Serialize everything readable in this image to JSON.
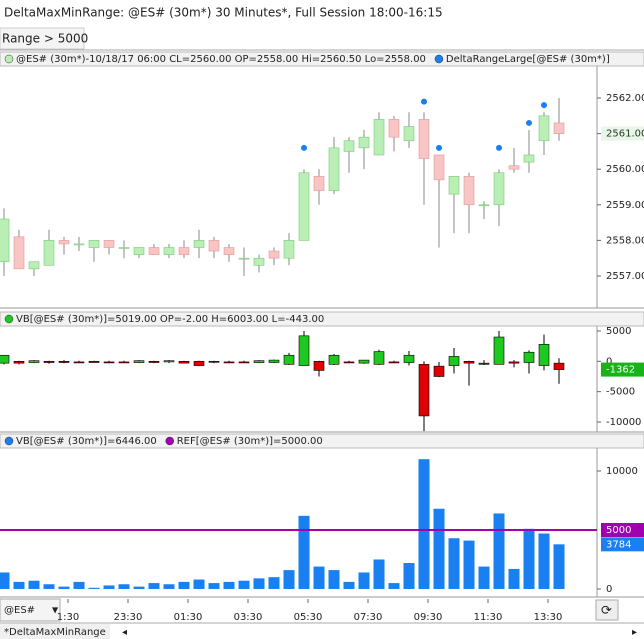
{
  "window": {
    "title": "DeltaMaxMinRange: @ES# (30m*) 30 Minutes*, Full Session 18:00-16:15",
    "filter": "Range > 5000",
    "symbol": "@ES#",
    "tab": "*DeltaMaxMinRange"
  },
  "chart_data": [
    {
      "type": "candlestick",
      "title": "@ES# (30m*)-10/18/17 06:00 CL=2560.00 OP=2558.00 Hi=2560.50 Lo=2558.00",
      "up_color": "#b9efb4",
      "down_color": "#f8c4c4",
      "edge_color": "#7cc77c",
      "open": [
        2557.4,
        2558.1,
        2557.2,
        2557.3,
        2558.0,
        2557.9,
        2557.8,
        2558.0,
        2557.8,
        2557.6,
        2557.8,
        2557.6,
        2557.8,
        2557.8,
        2558.0,
        2557.8,
        2557.5,
        2557.3,
        2557.7,
        2557.5,
        2558.0,
        2559.8,
        2559.4,
        2560.5,
        2560.6,
        2560.4,
        2561.4,
        2560.8,
        2561.4,
        2560.4,
        2559.3,
        2559.8,
        2559.0,
        2559.0,
        2560.1,
        2560.2,
        2560.8,
        2561.3
      ],
      "high": [
        2558.9,
        2558.3,
        2557.4,
        2558.3,
        2558.1,
        2558.1,
        2558.0,
        2558.0,
        2558.0,
        2557.8,
        2557.9,
        2557.9,
        2558.0,
        2558.3,
        2558.1,
        2557.9,
        2557.8,
        2557.6,
        2557.8,
        2558.2,
        2560.0,
        2560.0,
        2560.9,
        2560.9,
        2561.1,
        2561.6,
        2561.5,
        2561.6,
        2561.6,
        2560.4,
        2559.8,
        2559.9,
        2559.1,
        2560.0,
        2560.6,
        2561.1,
        2561.6,
        2562.0
      ],
      "low": [
        2557.0,
        2557.2,
        2557.0,
        2557.3,
        2557.6,
        2557.7,
        2557.4,
        2557.6,
        2557.5,
        2557.5,
        2557.6,
        2557.5,
        2557.5,
        2557.5,
        2557.5,
        2557.4,
        2557.0,
        2557.1,
        2557.3,
        2557.3,
        2558.0,
        2559.0,
        2559.3,
        2559.9,
        2560.0,
        2560.4,
        2560.5,
        2560.6,
        2559.0,
        2557.8,
        2558.2,
        2558.2,
        2558.6,
        2558.4,
        2559.9,
        2559.9,
        2560.4,
        2560.8
      ],
      "close": [
        2558.6,
        2557.2,
        2557.4,
        2558.0,
        2557.9,
        2557.9,
        2558.0,
        2557.8,
        2557.8,
        2557.8,
        2557.6,
        2557.8,
        2557.6,
        2558.0,
        2557.7,
        2557.6,
        2557.5,
        2557.5,
        2557.5,
        2558.0,
        2559.9,
        2559.4,
        2560.6,
        2560.8,
        2560.9,
        2561.4,
        2560.9,
        2561.2,
        2560.3,
        2559.7,
        2559.8,
        2559.0,
        2559.0,
        2559.9,
        2560.0,
        2560.4,
        2561.5,
        2561.0
      ],
      "series": [
        {
          "name": "DeltaRangeLarge[@ES# (30m*)]",
          "color": "#1a7ff0",
          "values": [
            null,
            null,
            null,
            null,
            null,
            null,
            null,
            null,
            null,
            null,
            null,
            null,
            null,
            null,
            null,
            null,
            null,
            null,
            null,
            null,
            2560.6,
            null,
            null,
            null,
            null,
            null,
            null,
            null,
            2561.9,
            2560.6,
            null,
            null,
            null,
            2560.6,
            null,
            2561.3,
            2561.8,
            null
          ]
        }
      ],
      "last": {
        "value": 2561,
        "label": "2561.00"
      },
      "ylim": [
        2556.1,
        2562.9
      ],
      "yticks": [
        {
          "value": 2557,
          "label": "2557.00"
        },
        {
          "value": 2558,
          "label": "2558.00"
        },
        {
          "value": 2559,
          "label": "2559.00"
        },
        {
          "value": 2560,
          "label": "2560.00"
        },
        {
          "value": 2561,
          "label": "2561.00"
        },
        {
          "value": 2562,
          "label": "2562.00"
        }
      ]
    },
    {
      "type": "candlestick",
      "title": "VB[@ES# (30m*)]=5019.00 OP=-2.00 H=6003.00 L=-443.00",
      "up_color": "#1ec81e",
      "down_color": "#e00000",
      "edge_color": "#000000",
      "open": [
        -300,
        0,
        -200,
        0,
        0,
        -100,
        0,
        -100,
        -100,
        -200,
        0,
        -100,
        0,
        0,
        0,
        -100,
        -100,
        -200,
        -200,
        -500,
        -700,
        0,
        -500,
        -100,
        -300,
        -500,
        -100,
        -200,
        -500,
        -800,
        -700,
        0,
        -300,
        -500,
        -100,
        -200,
        -700,
        -300
      ],
      "high": [
        1000,
        100,
        200,
        100,
        200,
        100,
        100,
        100,
        100,
        200,
        100,
        200,
        100,
        100,
        100,
        100,
        100,
        200,
        300,
        1400,
        5000,
        100,
        1200,
        100,
        200,
        1900,
        100,
        1700,
        0,
        -100,
        2200,
        100,
        200,
        5000,
        200,
        1800,
        4400,
        500
      ],
      "low": [
        -500,
        -500,
        -300,
        -400,
        -300,
        -300,
        -200,
        -300,
        -300,
        -300,
        -300,
        -300,
        -300,
        -800,
        -300,
        -300,
        -300,
        -300,
        -300,
        -600,
        -700,
        -2500,
        -600,
        -300,
        -400,
        -600,
        -300,
        -700,
        -11500,
        -2600,
        -2000,
        -4000,
        -600,
        -500,
        -1000,
        -2000,
        -1500,
        -3700
      ],
      "close": [
        1000,
        -300,
        100,
        -200,
        -200,
        -200,
        -200,
        -200,
        -200,
        100,
        -200,
        100,
        -300,
        -700,
        -100,
        -200,
        -200,
        100,
        200,
        1000,
        4200,
        -1500,
        1000,
        -200,
        200,
        1600,
        -200,
        1000,
        -9000,
        -2500,
        800,
        -300,
        -500,
        4000,
        -300,
        1500,
        2800,
        -1362
      ],
      "last": -1362,
      "ylim": [
        -11650,
        5820
      ],
      "yticks": [
        5000,
        0,
        -5000,
        -10000
      ]
    },
    {
      "type": "bar",
      "categories": [
        null,
        null,
        null,
        null,
        "1:30",
        null,
        null,
        null,
        "23:30",
        null,
        null,
        null,
        "01:30",
        null,
        null,
        null,
        "03:30",
        null,
        null,
        null,
        "05:30",
        null,
        null,
        null,
        "07:30",
        null,
        null,
        null,
        "09:30",
        null,
        null,
        null,
        "11:30",
        null,
        null,
        null,
        "13:30",
        null
      ],
      "series": [
        {
          "name": "VB[@ES# (30m*)]=6446.00",
          "color": "#1a7ff0",
          "values": [
            1400,
            600,
            700,
            400,
            200,
            600,
            100,
            300,
            400,
            200,
            500,
            400,
            600,
            800,
            500,
            600,
            700,
            900,
            1000,
            1600,
            6200,
            1900,
            1600,
            600,
            1400,
            2500,
            500,
            2200,
            11000,
            6800,
            4300,
            4100,
            1900,
            6400,
            1700,
            5100,
            4700,
            3784
          ]
        },
        {
          "name": "REF[@ES# (30m*)]=5000.00",
          "color": "#a000b0",
          "level": 5000
        }
      ],
      "ylim": [
        -680,
        11950
      ],
      "yticks": [
        0,
        10000
      ]
    }
  ]
}
